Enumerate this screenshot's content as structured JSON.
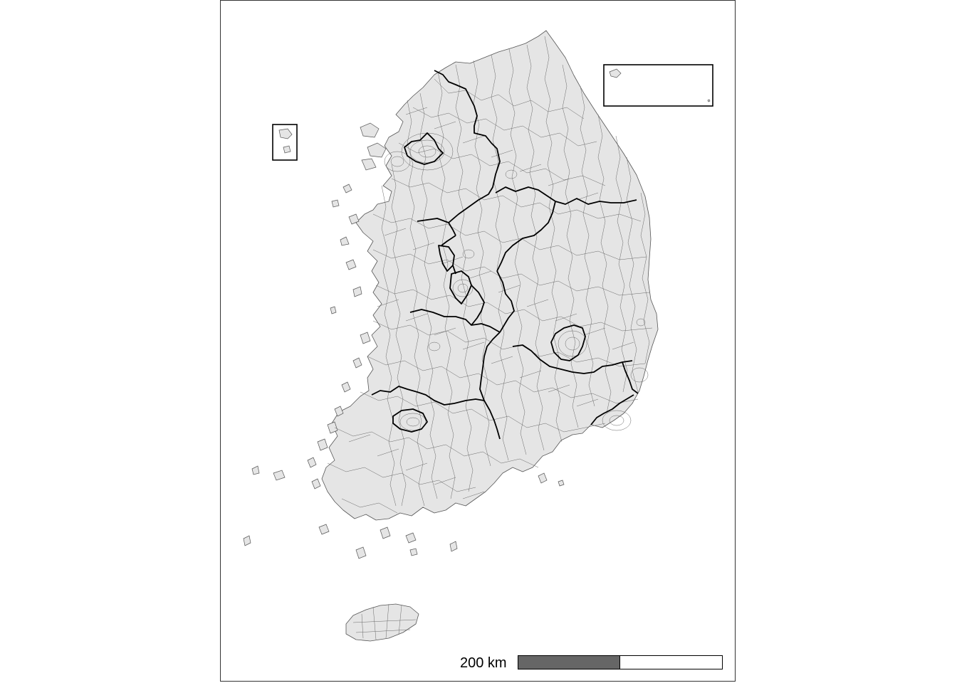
{
  "map": {
    "scale_bar": {
      "label": "200 km"
    },
    "colors": {
      "land": "#e5e5e5",
      "district_border": "#6a6a6a",
      "province_border": "#000000",
      "scale_dark": "#666666",
      "scale_light": "#ffffff"
    }
  }
}
